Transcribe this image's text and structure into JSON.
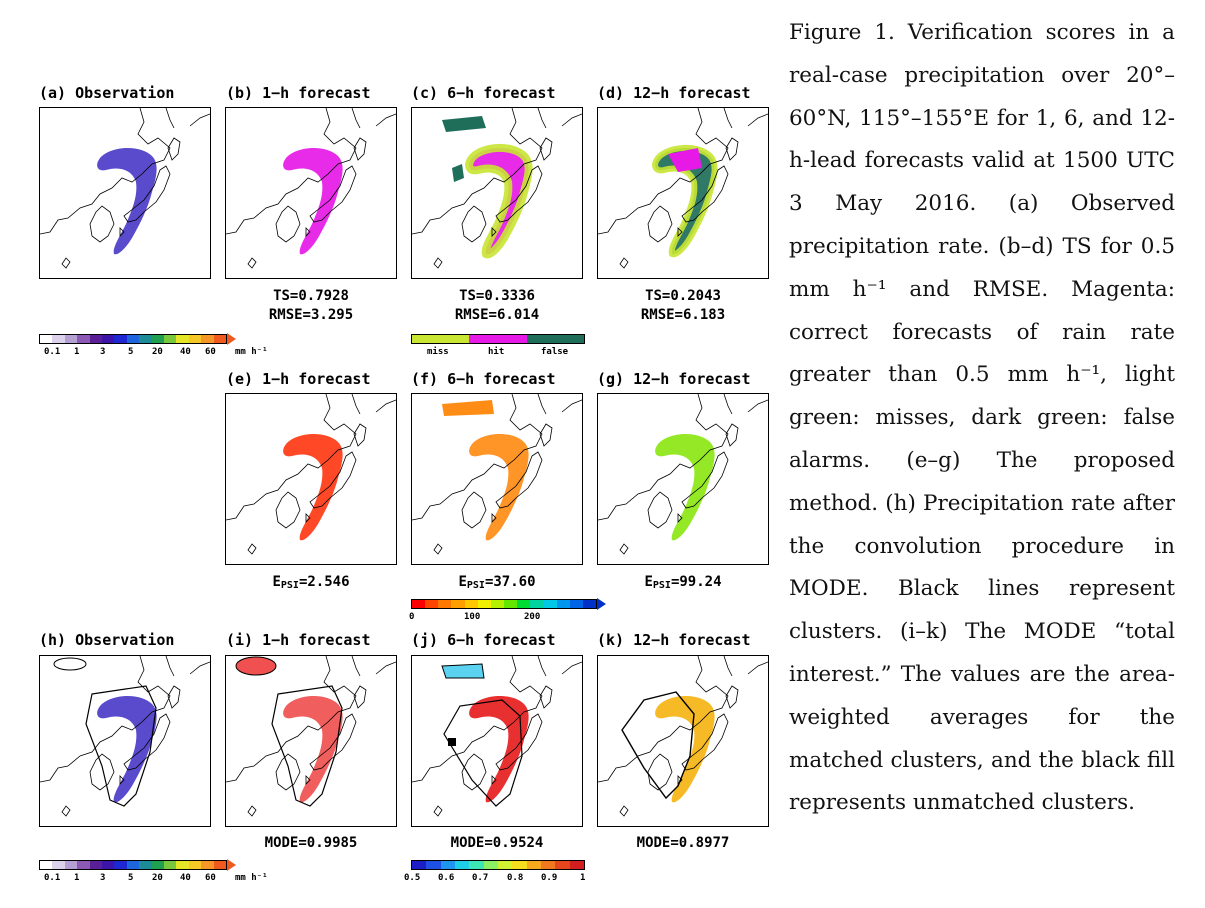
{
  "row1": {
    "titles": [
      "(a) Observation",
      "(b) 1−h forecast",
      "(c) 6−h forecast",
      "(d) 12−h forecast"
    ],
    "scores": [
      {
        "ts": "TS=0.7928",
        "rmse": "RMSE=3.295"
      },
      {
        "ts": "TS=0.3336",
        "rmse": "RMSE=6.014"
      },
      {
        "ts": "TS=0.2043",
        "rmse": "RMSE=6.183"
      }
    ]
  },
  "row2": {
    "titles": [
      "(e) 1−h forecast",
      "(f) 6−h forecast",
      "(g) 12−h forecast"
    ],
    "epsi_prefix": "E",
    "epsi_sub": "PSI",
    "epsi_values": [
      "=2.546",
      "=37.60",
      "=99.24"
    ]
  },
  "row3": {
    "titles": [
      "(h) Observation",
      "(i) 1−h forecast",
      "(j) 6−h forecast",
      "(k) 12−h forecast"
    ],
    "mode": [
      "MODE=0.9985",
      "MODE=0.9524",
      "MODE=0.8977"
    ]
  },
  "colorbars": {
    "precip_ticks": [
      "0.1",
      "1",
      "3",
      "5",
      "20",
      "40",
      "60"
    ],
    "precip_unit": "mm h⁻¹",
    "categ_labels": [
      "miss",
      "hit",
      "false"
    ],
    "epsi_ticks": [
      "0",
      "100",
      "200"
    ],
    "mode_ticks": [
      "0.5",
      "0.6",
      "0.7",
      "0.8",
      "0.9",
      "1"
    ]
  },
  "colors": {
    "hit": "#e619e6",
    "miss": "#c8e632",
    "false_alarm": "#1e6e5a",
    "epsi_1h": "#ff3a14",
    "epsi_6h": "#ff8c14",
    "epsi_12h": "#8ce614",
    "mode_fill_1h": "#f05050",
    "mode_fill_6h": "#e61e1e",
    "mode_fill_12h": "#f5b414",
    "obs_fill": "#4b3cc8"
  },
  "caption": "Figure 1. Verification scores in a real-case precipitation over 20°–60°N, 115°–155°E for 1, 6, and 12-h-lead forecasts valid at 1500 UTC 3 May 2016. (a) Observed precipitation rate. (b–d) TS for 0.5 mm h⁻¹ and RMSE. Magenta: correct forecasts of rain rate greater than 0.5 mm h⁻¹, light green: misses, dark green: false alarms. (e–g) The proposed method. (h) Precipitation rate after the convolution procedure in MODE. Black lines represent clusters. (i–k) The MODE “total interest.” The values are the area-weighted averages for the matched clusters, and the black fill represents unmatched clusters."
}
